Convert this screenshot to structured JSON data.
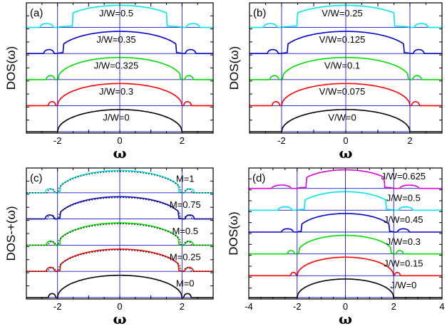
{
  "chart_data": [
    {
      "panel": "(a)",
      "type": "line",
      "xlabel": "ω",
      "ylabel": "DOS(ω)",
      "xlim": [
        -3,
        3
      ],
      "xticks": [
        "-2",
        "0",
        "2"
      ],
      "xtick_values": [
        -2,
        0,
        2
      ],
      "vlines": [
        -2,
        0,
        2
      ],
      "grid": false,
      "series": [
        {
          "label": "J/W=0",
          "color": "#000000",
          "gap": 0.0,
          "split": 0.0
        },
        {
          "label": "J/W=0.3",
          "color": "#ff0000",
          "gap": 0.0,
          "split": 0.35
        },
        {
          "label": "J/W=0.325",
          "color": "#00dd00",
          "gap": 0.05,
          "split": 0.45
        },
        {
          "label": "J/W=0.35",
          "color": "#0000cc",
          "gap": 0.2,
          "split": 0.55
        },
        {
          "label": "J/W=0.5",
          "color": "#00e5ee",
          "gap": 0.5,
          "split": 0.7
        }
      ]
    },
    {
      "panel": "(b)",
      "type": "line",
      "xlabel": "ω",
      "ylabel": "DOS(ω)",
      "xlim": [
        -3,
        3
      ],
      "xticks": [
        "-2",
        "0",
        "2"
      ],
      "xtick_values": [
        -2,
        0,
        2
      ],
      "vlines": [
        -2,
        0,
        2
      ],
      "grid": false,
      "series": [
        {
          "label": "V/W=0",
          "color": "#000000",
          "gap": 0.0,
          "split": 0.0
        },
        {
          "label": "V/W=0.075",
          "color": "#ff0000",
          "gap": 0.0,
          "split": 0.35
        },
        {
          "label": "V/W=0.1",
          "color": "#00dd00",
          "gap": 0.05,
          "split": 0.45
        },
        {
          "label": "V/W=0.125",
          "color": "#0000cc",
          "gap": 0.2,
          "split": 0.55
        },
        {
          "label": "V/W=0.25",
          "color": "#00e5ee",
          "gap": 0.5,
          "split": 0.7
        }
      ]
    },
    {
      "panel": "(c)",
      "type": "line",
      "xlabel": "ω",
      "ylabel": "DOS-+(ω)",
      "xlim": [
        -3,
        3
      ],
      "xticks": [
        "-2",
        "0",
        "2"
      ],
      "xtick_values": [
        -2,
        0,
        2
      ],
      "vlines": [
        -2,
        0,
        2
      ],
      "grid": false,
      "dotted_overlay": true,
      "series": [
        {
          "label": "M=0",
          "color": "#000000",
          "gap": 0.0,
          "split": 0.35
        },
        {
          "label": "M=0.25",
          "color": "#ff0000",
          "gap": 0.1,
          "split": 0.45
        },
        {
          "label": "M=0.5",
          "color": "#00dd00",
          "gap": 0.1,
          "split": 0.45
        },
        {
          "label": "M=0.75",
          "color": "#0000cc",
          "gap": 0.1,
          "split": 0.5
        },
        {
          "label": "M=1",
          "color": "#00e5ee",
          "gap": 0.1,
          "split": 0.5
        }
      ]
    },
    {
      "panel": "(d)",
      "type": "line",
      "xlabel": "ω",
      "ylabel": "DOS(ω)",
      "xlim": [
        -4,
        4
      ],
      "xticks": [
        "-4",
        "-2",
        "0",
        "2",
        "4"
      ],
      "xtick_values": [
        -4,
        -2,
        0,
        2,
        4
      ],
      "vlines": [
        -2,
        0,
        2
      ],
      "grid": false,
      "series": [
        {
          "label": "J/W=0",
          "color": "#000000",
          "gap": 0.0,
          "split": 0.0
        },
        {
          "label": "J/W=0.15",
          "color": "#ff0000",
          "gap": 0.0,
          "split": 0.3
        },
        {
          "label": "J/W=0.3",
          "color": "#00dd00",
          "gap": 0.1,
          "split": 0.5
        },
        {
          "label": "J/W=0.45",
          "color": "#0000cc",
          "gap": 0.2,
          "split": 0.8
        },
        {
          "label": "J/W=0.5",
          "color": "#00e5ee",
          "gap": 0.3,
          "split": 1.0
        },
        {
          "label": "J/W=0.625",
          "color": "#dd00dd",
          "gap": 0.4,
          "split": 1.3
        }
      ]
    }
  ]
}
